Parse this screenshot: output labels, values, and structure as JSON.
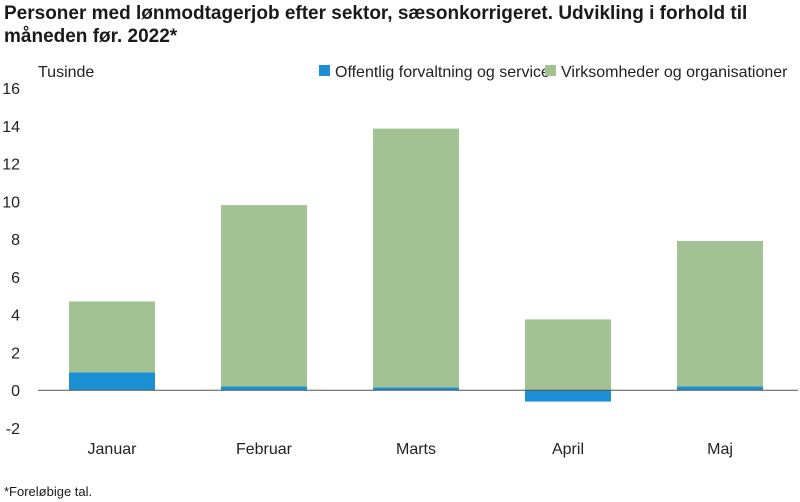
{
  "title": "Personer med lønmodtagerjob efter sektor, sæsonkorrigeret. Udvikling i forhold til måneden før. 2022*",
  "footnote": "*Foreløbige tal.",
  "chart_data": {
    "type": "bar",
    "stacked": true,
    "unit_label": "Tusinde",
    "categories": [
      "Januar",
      "Februar",
      "Marts",
      "April",
      "Maj"
    ],
    "series": [
      {
        "name": "Offentlig forvaltning og service",
        "color": "#1b8fd3",
        "values": [
          0.95,
          0.2,
          0.15,
          -0.6,
          0.2
        ]
      },
      {
        "name": "Virksomheder og organisationer",
        "color": "#a3c293",
        "values": [
          3.75,
          9.6,
          13.7,
          3.75,
          7.7
        ]
      }
    ],
    "ylim": [
      -2,
      16
    ],
    "yticks": [
      -2,
      0,
      2,
      4,
      6,
      8,
      10,
      12,
      14,
      16
    ],
    "legend_position": "top-right",
    "grid": false
  }
}
